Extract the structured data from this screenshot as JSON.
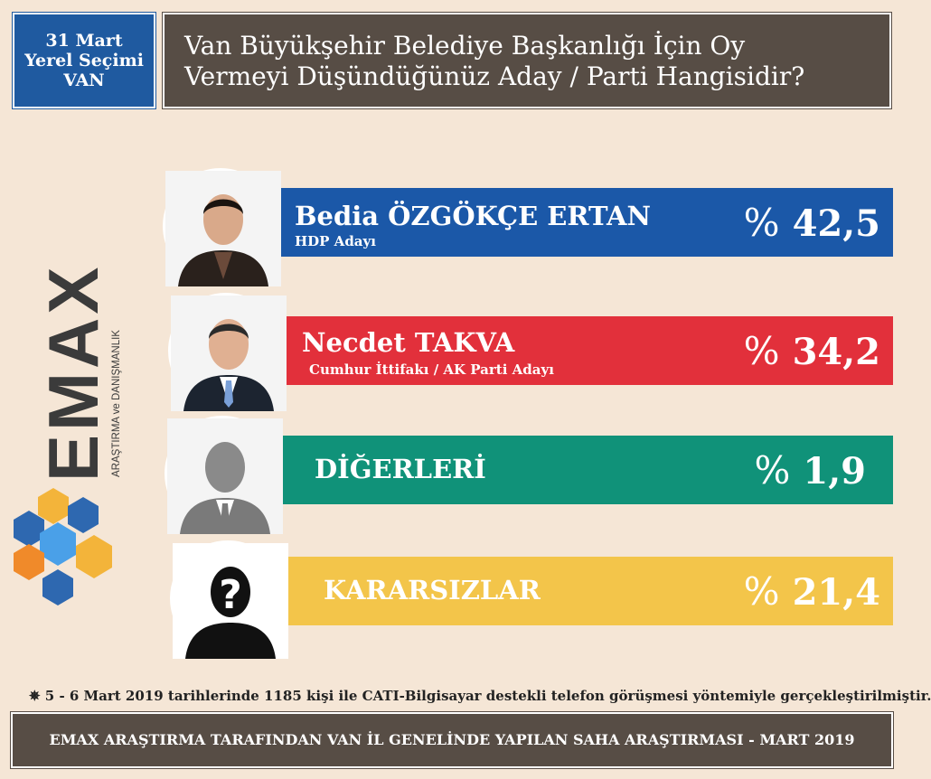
{
  "header": {
    "election_lines": [
      "31 Mart",
      "Yerel Seçimi",
      "VAN"
    ],
    "question_lines": [
      "Van Büyükşehir Belediye Başkanlığı İçin Oy",
      "Vermeyi Düşündüğünüz Aday / Parti Hangisidir?"
    ]
  },
  "logo": {
    "word": "EMAX",
    "subtitle": "ARAŞTIRMA ve DANIŞMANLIK"
  },
  "chart_data": {
    "type": "bar",
    "title": "Van Büyükşehir Belediye Başkanlığı İçin Oy Vermeyi Düşündüğünüz Aday / Parti Hangisidir?",
    "unit": "%",
    "categories": [
      "Bedia ÖZGÖKÇE ERTAN",
      "Necdet TAKVA",
      "DİĞERLERİ",
      "KARARSIZLAR"
    ],
    "subtitles": [
      "HDP Adayı",
      "Cumhur İttifakı / AK Parti Adayı",
      "",
      ""
    ],
    "values": [
      42.5,
      34.2,
      1.9,
      21.4
    ],
    "value_labels": [
      "42,5",
      "34,2",
      "1,9",
      "21,4"
    ],
    "colors": [
      "#1b58a8",
      "#e2303b",
      "#109279",
      "#f3c54a"
    ]
  },
  "footnote": "✵ 5 - 6 Mart 2019 tarihlerinde 1185 kişi ile CATI-Bilgisayar destekli telefon görüşmesi yöntemiyle gerçekleştirilmiştir.",
  "footer": "EMAX ARAŞTIRMA TARAFINDAN VAN İL GENELİNDE YAPILAN SAHA ARAŞTIRMASI - MART 2019"
}
